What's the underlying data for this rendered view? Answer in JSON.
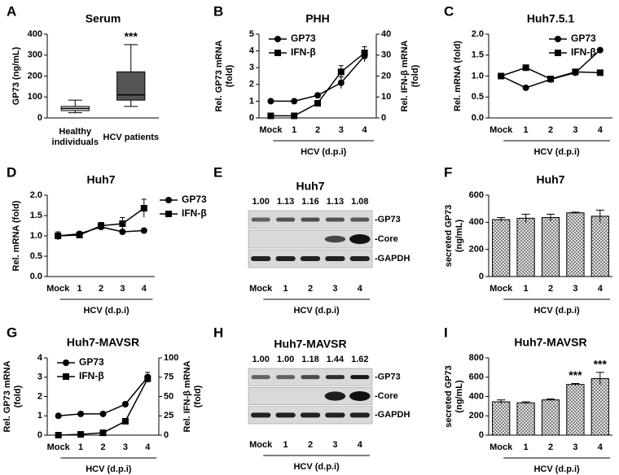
{
  "chart_data": [
    {
      "panel": "A",
      "type": "box",
      "title": "Serum",
      "y_label": "GP73 (ng/mL)",
      "categories": [
        "Healthy individuals",
        "HCV patients"
      ],
      "ylim": [
        0,
        400
      ],
      "yticks": [
        0,
        100,
        200,
        300,
        400
      ],
      "min": [
        25,
        55
      ],
      "q1": [
        35,
        85
      ],
      "median": [
        45,
        110
      ],
      "q3": [
        55,
        220
      ],
      "max": [
        85,
        350
      ],
      "colors": [
        "#e6e6e6",
        "#555555"
      ],
      "annotations": [
        null,
        "***"
      ]
    },
    {
      "panel": "B",
      "type": "line",
      "title": "PHH",
      "categories": [
        "Mock",
        "1",
        "2",
        "3",
        "4"
      ],
      "x_group_label": "HCV (d.p.i)",
      "y_label": "Rel. GP73 mRNA (fold)",
      "y2_label": "Rel. IFN-β mRNA (fold)",
      "ylim": [
        0,
        5
      ],
      "yticks": [
        0,
        1,
        2,
        3,
        4,
        5
      ],
      "y2lim": [
        0,
        40
      ],
      "y2ticks": [
        0,
        10,
        20,
        30,
        40
      ],
      "legend": "upper left",
      "series": [
        {
          "name": "GP73",
          "marker": "circle",
          "color": "#000000",
          "values": [
            1,
            1,
            1.35,
            2.1,
            3.7
          ],
          "errors": [
            0.03,
            0.03,
            0.05,
            0.35,
            0.35
          ]
        },
        {
          "name": "IFN-β",
          "marker": "square",
          "color": "#000000",
          "axis": "y2",
          "values": [
            1,
            1,
            7,
            22,
            31
          ],
          "errors": [
            0.3,
            0.3,
            0.6,
            3,
            3
          ]
        }
      ]
    },
    {
      "panel": "C",
      "type": "line",
      "title": "Huh7.5.1",
      "categories": [
        "Mock",
        "1",
        "2",
        "3",
        "4"
      ],
      "x_group_label": "HCV (d.p.i)",
      "y_label": "Rel. mRNA (fold)",
      "ylim": [
        0,
        2
      ],
      "yticks": [
        {
          "value": 0,
          "label": "0.0"
        },
        0.5,
        {
          "value": 1,
          "label": "1.0"
        },
        1.5,
        {
          "value": 2,
          "label": "2.0"
        }
      ],
      "legend": "upper right",
      "series": [
        {
          "name": "GP73",
          "marker": "circle",
          "color": "#000000",
          "values": [
            1,
            0.72,
            0.92,
            1.08,
            1.62
          ]
        },
        {
          "name": "IFN-β",
          "marker": "square",
          "color": "#000000",
          "values": [
            1,
            1.2,
            0.93,
            1.1,
            1.08
          ]
        }
      ]
    },
    {
      "panel": "D",
      "type": "line",
      "title": "Huh7",
      "categories": [
        "Mock",
        "1",
        "2",
        "3",
        "4"
      ],
      "x_group_label": "HCV (d.p.i)",
      "y_label": "Rel. mRNA (fold)",
      "ylim": [
        0,
        2
      ],
      "yticks": [
        {
          "value": 0,
          "label": "0.0"
        },
        0.5,
        {
          "value": 1,
          "label": "1.0"
        },
        1.5,
        {
          "value": 2,
          "label": "2.0"
        }
      ],
      "legend": "outside right",
      "series": [
        {
          "name": "GP73",
          "marker": "circle",
          "color": "#000000",
          "values": [
            1,
            1.05,
            1.22,
            1.1,
            1.13
          ],
          "errors": [
            0.1,
            0.05,
            0.05,
            0.05,
            0.02
          ]
        },
        {
          "name": "IFN-β",
          "marker": "square",
          "color": "#000000",
          "values": [
            1,
            1.02,
            1.25,
            1.3,
            1.68
          ],
          "errors": [
            0.1,
            0.05,
            0.08,
            0.15,
            0.22
          ]
        }
      ]
    },
    {
      "panel": "E",
      "type": "blot",
      "title": "Huh7",
      "categories": [
        "Mock",
        "1",
        "2",
        "3",
        "4"
      ],
      "x_group_label": "HCV (d.p.i)",
      "values": [
        1,
        1.13,
        1.16,
        1.13,
        1.08
      ],
      "value_labels": [
        "1.00",
        "1.13",
        "1.16",
        "1.13",
        "1.08"
      ],
      "rows": [
        "-GP73",
        "-Core",
        "-GAPDH"
      ]
    },
    {
      "panel": "F",
      "type": "bar",
      "title": "Huh7",
      "y_label": "secreted GP73 (ng/mL)",
      "categories": [
        "Mock",
        "1",
        "2",
        "3",
        "4"
      ],
      "x_group_label": "HCV (d.p.i)",
      "ylim": [
        0,
        600
      ],
      "yticks": [
        0,
        200,
        400,
        600
      ],
      "values": [
        420,
        430,
        435,
        470,
        445
      ],
      "errors": [
        15,
        30,
        25,
        5,
        45
      ]
    },
    {
      "panel": "G",
      "type": "line",
      "title": "Huh7-MAVSR",
      "categories": [
        "Mock",
        "1",
        "2",
        "3",
        "4"
      ],
      "x_group_label": "HCV (d.p.i)",
      "y_label": "Rel. GP73 mRNA (fold)",
      "y2_label": "Rel. IFN-β mRNA (fold)",
      "ylim": [
        0,
        4
      ],
      "yticks": [
        0,
        1,
        2,
        3,
        4
      ],
      "y2lim": [
        0,
        100
      ],
      "y2ticks": [
        0,
        25,
        50,
        75,
        100
      ],
      "legend": "upper left",
      "series": [
        {
          "name": "GP73",
          "marker": "circle",
          "color": "#000000",
          "values": [
            1,
            1.1,
            1.1,
            1.6,
            3.0
          ],
          "errors": [
            0.03,
            0.03,
            0.03,
            0.12,
            0.25
          ]
        },
        {
          "name": "IFN-β",
          "marker": "square",
          "color": "#000000",
          "axis": "y2",
          "values": [
            0,
            1,
            3,
            18,
            73
          ],
          "errors": [
            0.3,
            0.3,
            0.3,
            1,
            5
          ]
        }
      ]
    },
    {
      "panel": "H",
      "type": "blot",
      "title": "Huh7-MAVSR",
      "categories": [
        "Mock",
        "1",
        "2",
        "3",
        "4"
      ],
      "x_group_label": "HCV (d.p.i)",
      "values": [
        1,
        1,
        1.18,
        1.44,
        1.62
      ],
      "value_labels": [
        "1.00",
        "1.00",
        "1.18",
        "1.44",
        "1.62"
      ],
      "rows": [
        "-GP73",
        "-Core",
        "-GAPDH"
      ]
    },
    {
      "panel": "I",
      "type": "bar",
      "title": "Huh7-MAVSR",
      "y_label": "secreted GP73 (ng/mL)",
      "categories": [
        "Mock",
        "1",
        "2",
        "3",
        "4"
      ],
      "x_group_label": "HCV (d.p.i)",
      "ylim": [
        0,
        800
      ],
      "yticks": [
        0,
        200,
        400,
        600,
        800
      ],
      "values": [
        345,
        335,
        365,
        525,
        585
      ],
      "errors": [
        20,
        10,
        10,
        10,
        65
      ],
      "significance": [
        null,
        null,
        null,
        "***",
        "***"
      ]
    }
  ]
}
